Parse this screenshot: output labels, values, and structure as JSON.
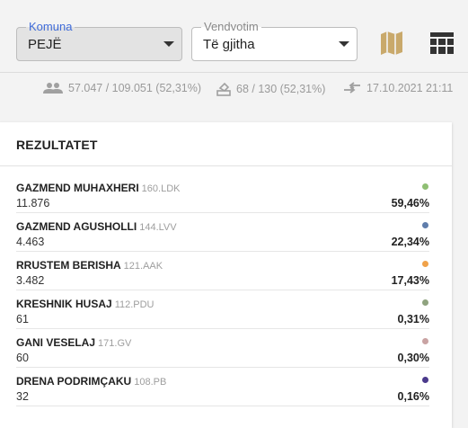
{
  "filters": {
    "komuna": {
      "label": "Komuna",
      "value": "PEJË"
    },
    "vendvotim": {
      "label": "Vendvotim",
      "value": "Të gjitha"
    }
  },
  "toolbar": {
    "map_icon": "map-icon",
    "table_icon": "table-icon",
    "map_color": "#c9a96b"
  },
  "stats": {
    "voters": "57.047 / 109.051 (52,31%)",
    "stations": "68 / 130 (52,31%)",
    "updated": "17.10.2021 21:11"
  },
  "results": {
    "title": "REZULTATET",
    "candidates": [
      {
        "name": "GAZMEND MUHAXHERI",
        "code": "160.LDK",
        "votes": "11.876",
        "percent": "59,46%",
        "color": "#8fbf73"
      },
      {
        "name": "GAZMEND AGUSHOLLI",
        "code": "144.LVV",
        "votes": "4.463",
        "percent": "22,34%",
        "color": "#5f7dab"
      },
      {
        "name": "RRUSTEM BERISHA",
        "code": "121.AAK",
        "votes": "3.482",
        "percent": "17,43%",
        "color": "#f0a24a"
      },
      {
        "name": "KRESHNIK HUSAJ",
        "code": "112.PDU",
        "votes": "61",
        "percent": "0,31%",
        "color": "#8fa37f"
      },
      {
        "name": "GANI VESELAJ",
        "code": "171.GV",
        "votes": "60",
        "percent": "0,30%",
        "color": "#c9a3a3"
      },
      {
        "name": "DRENA PODRIMÇAKU",
        "code": "108.PB",
        "votes": "32",
        "percent": "0,16%",
        "color": "#4b3a8c"
      }
    ]
  }
}
